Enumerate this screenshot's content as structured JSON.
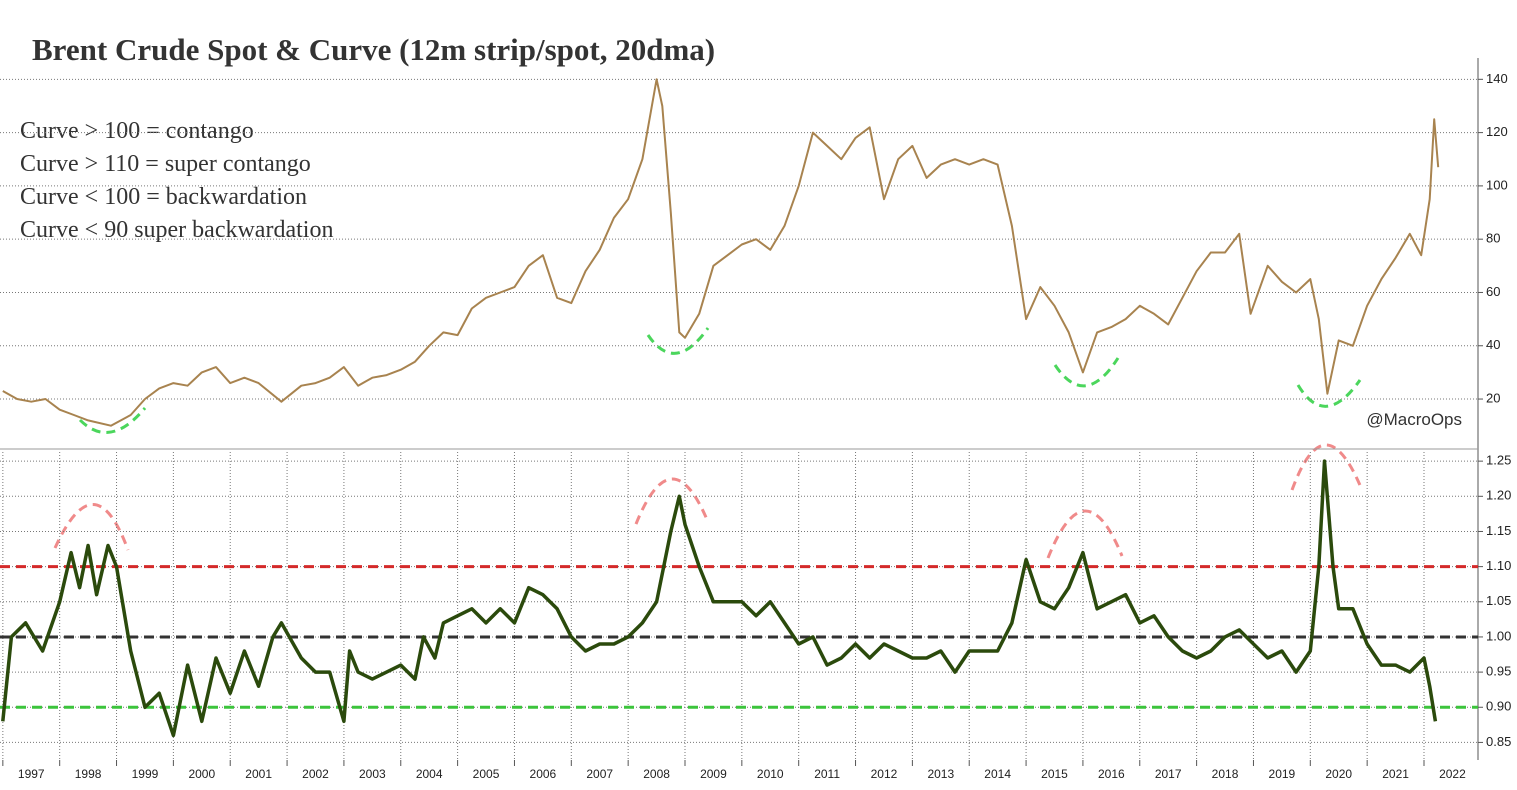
{
  "chart_data": [
    {
      "type": "line",
      "title": "Brent Crude Spot & Curve (12m strip/spot, 20dma)",
      "annotations": [
        "Curve > 100 = contango",
        "Curve > 110 = super contango",
        "Curve < 100 = backwardation",
        "Curve < 90 super backwardation"
      ],
      "credit": "@MacroOps",
      "xlim": [
        1996.95,
        2022.95
      ],
      "ylim": [
        2,
        148
      ],
      "yticks": [
        20,
        40,
        60,
        80,
        100,
        120,
        140
      ],
      "grid": true,
      "series": [
        {
          "color": "#a8834f",
          "x": [
            1997.0,
            1997.25,
            1997.5,
            1997.75,
            1998.0,
            1998.25,
            1998.5,
            1998.9,
            1999.25,
            1999.5,
            1999.75,
            2000.0,
            2000.25,
            2000.5,
            2000.75,
            2001.0,
            2001.25,
            2001.5,
            2001.9,
            2002.25,
            2002.5,
            2002.75,
            2003.0,
            2003.25,
            2003.5,
            2003.75,
            2004.0,
            2004.25,
            2004.5,
            2004.75,
            2005.0,
            2005.25,
            2005.5,
            2005.75,
            2006.0,
            2006.25,
            2006.5,
            2006.75,
            2007.0,
            2007.25,
            2007.5,
            2007.75,
            2008.0,
            2008.25,
            2008.5,
            2008.6,
            2008.75,
            2008.9,
            2009.0,
            2009.25,
            2009.5,
            2009.75,
            2010.0,
            2010.25,
            2010.5,
            2010.75,
            2011.0,
            2011.25,
            2011.5,
            2011.75,
            2012.0,
            2012.25,
            2012.5,
            2012.75,
            2013.0,
            2013.25,
            2013.5,
            2013.75,
            2014.0,
            2014.25,
            2014.5,
            2014.75,
            2015.0,
            2015.25,
            2015.5,
            2015.75,
            2016.0,
            2016.25,
            2016.5,
            2016.75,
            2017.0,
            2017.25,
            2017.5,
            2017.75,
            2018.0,
            2018.25,
            2018.5,
            2018.75,
            2018.95,
            2019.25,
            2019.5,
            2019.75,
            2020.0,
            2020.15,
            2020.3,
            2020.5,
            2020.75,
            2021.0,
            2021.25,
            2021.5,
            2021.75,
            2021.95,
            2022.1,
            2022.18,
            2022.25
          ],
          "values": [
            23,
            20,
            19,
            20,
            16,
            14,
            12,
            10,
            14,
            20,
            24,
            26,
            25,
            30,
            32,
            26,
            28,
            26,
            19,
            25,
            26,
            28,
            32,
            25,
            28,
            29,
            31,
            34,
            40,
            45,
            44,
            54,
            58,
            60,
            62,
            70,
            74,
            58,
            56,
            68,
            76,
            88,
            95,
            110,
            140,
            130,
            90,
            45,
            43,
            52,
            70,
            74,
            78,
            80,
            76,
            85,
            100,
            120,
            115,
            110,
            118,
            122,
            95,
            110,
            115,
            103,
            108,
            110,
            108,
            110,
            108,
            85,
            50,
            62,
            55,
            45,
            30,
            45,
            47,
            50,
            55,
            52,
            48,
            58,
            68,
            75,
            75,
            82,
            52,
            70,
            64,
            60,
            65,
            50,
            22,
            42,
            40,
            55,
            65,
            73,
            82,
            74,
            95,
            125,
            107
          ]
        }
      ]
    },
    {
      "type": "line",
      "xlim": [
        1996.95,
        2022.95
      ],
      "ylim": [
        0.825,
        1.263
      ],
      "yticks": [
        0.85,
        {
          "value": 0.9,
          "label": "0.90"
        },
        0.95,
        {
          "value": 1.0,
          "label": "1.00"
        },
        1.05,
        {
          "value": 1.1,
          "label": "1.10"
        },
        1.15,
        {
          "value": 1.2,
          "label": "1.20"
        },
        1.25
      ],
      "xticks": [
        1997,
        1998,
        1999,
        2000,
        2001,
        2002,
        2003,
        2004,
        2005,
        2006,
        2007,
        2008,
        2009,
        2010,
        2011,
        2012,
        2013,
        2014,
        2015,
        2016,
        2017,
        2018,
        2019,
        2020,
        2021,
        2022
      ],
      "grid": true,
      "reference_lines": [
        {
          "value": 1.1,
          "color": "#d42a2a"
        },
        {
          "value": 1.0,
          "color": "#333333"
        },
        {
          "value": 0.9,
          "color": "#3cc43c"
        }
      ],
      "series": [
        {
          "color": "#2b4a0c",
          "x": [
            1997.0,
            1997.15,
            1997.4,
            1997.7,
            1998.0,
            1998.2,
            1998.35,
            1998.5,
            1998.65,
            1998.85,
            1999.0,
            1999.25,
            1999.5,
            1999.75,
            2000.0,
            2000.25,
            2000.5,
            2000.75,
            2001.0,
            2001.25,
            2001.5,
            2001.75,
            2001.9,
            2002.25,
            2002.5,
            2002.75,
            2003.0,
            2003.1,
            2003.25,
            2003.5,
            2003.75,
            2004.0,
            2004.25,
            2004.4,
            2004.6,
            2004.75,
            2005.0,
            2005.25,
            2005.5,
            2005.75,
            2006.0,
            2006.25,
            2006.5,
            2006.75,
            2007.0,
            2007.25,
            2007.5,
            2007.75,
            2008.0,
            2008.25,
            2008.5,
            2008.75,
            2008.9,
            2009.0,
            2009.25,
            2009.5,
            2009.75,
            2010.0,
            2010.25,
            2010.5,
            2010.75,
            2011.0,
            2011.25,
            2011.5,
            2011.75,
            2012.0,
            2012.25,
            2012.5,
            2012.75,
            2013.0,
            2013.25,
            2013.5,
            2013.75,
            2014.0,
            2014.25,
            2014.5,
            2014.75,
            2015.0,
            2015.25,
            2015.5,
            2015.75,
            2016.0,
            2016.25,
            2016.5,
            2016.75,
            2017.0,
            2017.25,
            2017.5,
            2017.75,
            2018.0,
            2018.25,
            2018.5,
            2018.75,
            2019.0,
            2019.25,
            2019.5,
            2019.75,
            2020.0,
            2020.15,
            2020.25,
            2020.4,
            2020.5,
            2020.75,
            2021.0,
            2021.25,
            2021.5,
            2021.75,
            2022.0,
            2022.1,
            2022.2
          ],
          "values": [
            0.88,
            1.0,
            1.02,
            0.98,
            1.05,
            1.12,
            1.07,
            1.13,
            1.06,
            1.13,
            1.1,
            0.98,
            0.9,
            0.92,
            0.86,
            0.96,
            0.88,
            0.97,
            0.92,
            0.98,
            0.93,
            1.0,
            1.02,
            0.97,
            0.95,
            0.95,
            0.88,
            0.98,
            0.95,
            0.94,
            0.95,
            0.96,
            0.94,
            1.0,
            0.97,
            1.02,
            1.03,
            1.04,
            1.02,
            1.04,
            1.02,
            1.07,
            1.06,
            1.04,
            1.0,
            0.98,
            0.99,
            0.99,
            1.0,
            1.02,
            1.05,
            1.15,
            1.2,
            1.16,
            1.1,
            1.05,
            1.05,
            1.05,
            1.03,
            1.05,
            1.02,
            0.99,
            1.0,
            0.96,
            0.97,
            0.99,
            0.97,
            0.99,
            0.98,
            0.97,
            0.97,
            0.98,
            0.95,
            0.98,
            0.98,
            0.98,
            1.02,
            1.11,
            1.05,
            1.04,
            1.07,
            1.12,
            1.04,
            1.05,
            1.06,
            1.02,
            1.03,
            1.0,
            0.98,
            0.97,
            0.98,
            1.0,
            1.01,
            0.99,
            0.97,
            0.98,
            0.95,
            0.98,
            1.1,
            1.25,
            1.1,
            1.04,
            1.04,
            0.99,
            0.96,
            0.96,
            0.95,
            0.97,
            0.93,
            0.88
          ]
        }
      ]
    }
  ]
}
